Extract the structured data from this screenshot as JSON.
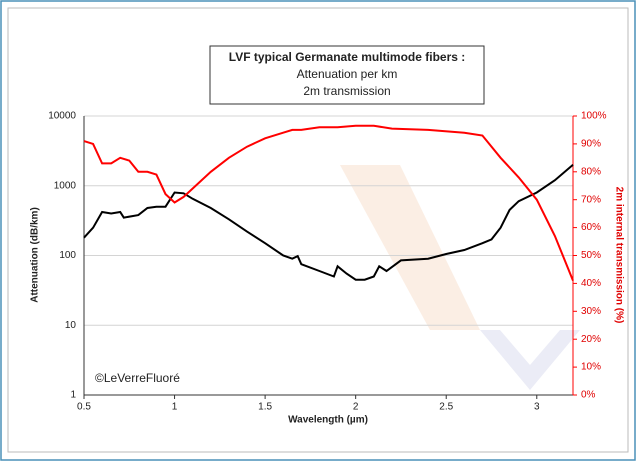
{
  "chart_data": {
    "type": "line",
    "title": "LVF typical Germanate multimode fibers :",
    "subtitle": [
      "Attenuation per km",
      "2m transmission"
    ],
    "annotation": "©LeVerreFluoré",
    "x_label": "Wavelength (µm)",
    "y_label": "Attenuation (dB/km)",
    "y2_label": "2m internal transmission (%)",
    "xlim": [
      0.5,
      3.2
    ],
    "xticks": [
      0.5,
      1,
      1.5,
      2,
      2.5,
      3
    ],
    "ylim": [
      1,
      10000
    ],
    "yticks": [
      1,
      10,
      100,
      1000,
      10000
    ],
    "y_log": true,
    "y2lim": [
      0,
      100
    ],
    "y2ticks": [
      {
        "value": 0,
        "label": "0%"
      },
      {
        "value": 10,
        "label": "10%"
      },
      {
        "value": 20,
        "label": "20%"
      },
      {
        "value": 30,
        "label": "30%"
      },
      {
        "value": 40,
        "label": "40%"
      },
      {
        "value": 50,
        "label": "50%"
      },
      {
        "value": 60,
        "label": "60%"
      },
      {
        "value": 70,
        "label": "70%"
      },
      {
        "value": 80,
        "label": "80%"
      },
      {
        "value": 90,
        "label": "90%"
      },
      {
        "value": 100,
        "label": "100%"
      }
    ],
    "grid": true,
    "series": [
      {
        "color": "#000000",
        "axis": "y",
        "x": [
          0.5,
          0.55,
          0.6,
          0.65,
          0.7,
          0.72,
          0.8,
          0.85,
          0.9,
          0.95,
          1.0,
          1.05,
          1.1,
          1.2,
          1.3,
          1.4,
          1.5,
          1.6,
          1.65,
          1.68,
          1.7,
          1.8,
          1.88,
          1.9,
          1.95,
          2.0,
          2.05,
          2.1,
          2.13,
          2.17,
          2.25,
          2.4,
          2.5,
          2.6,
          2.7,
          2.75,
          2.8,
          2.85,
          2.9,
          3.0,
          3.1,
          3.2
        ],
        "values": [
          180,
          250,
          420,
          400,
          420,
          350,
          380,
          480,
          500,
          500,
          800,
          780,
          650,
          480,
          330,
          220,
          150,
          100,
          90,
          98,
          75,
          60,
          50,
          70,
          55,
          45,
          45,
          50,
          70,
          60,
          85,
          90,
          105,
          120,
          150,
          170,
          250,
          450,
          600,
          800,
          1200,
          2000
        ]
      },
      {
        "color": "#ff0000",
        "axis": "y2",
        "x": [
          0.5,
          0.55,
          0.6,
          0.65,
          0.7,
          0.75,
          0.8,
          0.85,
          0.9,
          0.95,
          1.0,
          1.05,
          1.1,
          1.2,
          1.3,
          1.4,
          1.5,
          1.6,
          1.65,
          1.7,
          1.8,
          1.9,
          2.0,
          2.1,
          2.2,
          2.4,
          2.6,
          2.7,
          2.8,
          2.9,
          3.0,
          3.1,
          3.2
        ],
        "values": [
          91,
          90,
          83,
          83,
          85,
          84,
          80,
          80,
          79,
          72,
          69,
          71,
          74,
          80,
          85,
          89,
          92,
          94,
          95,
          95,
          96,
          96,
          96.5,
          96.5,
          95.5,
          95,
          94,
          93,
          85,
          78,
          70,
          57,
          41
        ]
      }
    ]
  }
}
